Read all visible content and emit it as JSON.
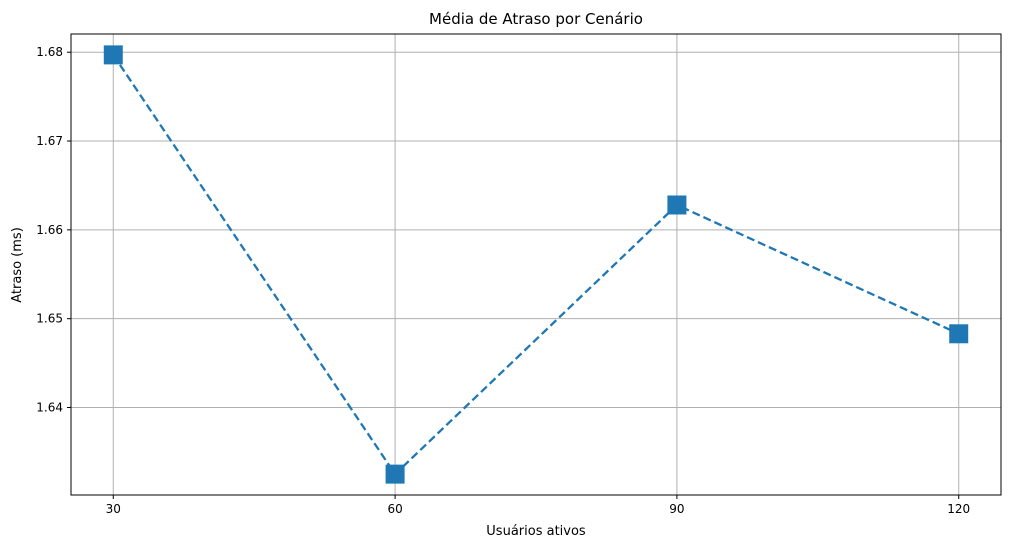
{
  "chart_data": {
    "type": "line",
    "title": "Média de Atraso por Cenário",
    "xlabel": "Usuários ativos",
    "ylabel": "Atraso (ms)",
    "x": [
      30,
      60,
      90,
      120
    ],
    "x_tick_labels": [
      "30",
      "60",
      "90",
      "120"
    ],
    "series": [
      {
        "values": [
          1.6797,
          1.6325,
          1.6628,
          1.6483
        ],
        "color": "#1f77b4",
        "line_style": "dashed",
        "marker": "square"
      }
    ],
    "y_ticks": [
      1.64,
      1.65,
      1.66,
      1.67,
      1.68
    ],
    "y_tick_labels": [
      "1.64",
      "1.65",
      "1.66",
      "1.67",
      "1.68"
    ],
    "xlim": [
      25.5,
      124.5
    ],
    "ylim": [
      1.63015,
      1.68205
    ],
    "grid": true
  }
}
